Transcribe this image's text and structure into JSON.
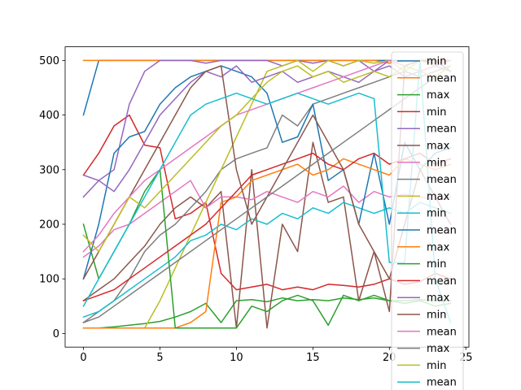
{
  "chart_data": {
    "type": "line",
    "title": "",
    "xlabel": "",
    "ylabel": "",
    "xlim": [
      -1.2,
      25.2
    ],
    "ylim": [
      -25,
      525
    ],
    "xticks": [
      0,
      5,
      10,
      15,
      20,
      25
    ],
    "yticks": [
      0,
      100,
      200,
      300,
      400,
      500
    ],
    "x": [
      0,
      1,
      2,
      3,
      4,
      5,
      6,
      7,
      8,
      9,
      10,
      11,
      12,
      13,
      14,
      15,
      16,
      17,
      18,
      19,
      20,
      21,
      22,
      23,
      24
    ],
    "legend_position": "right, partially clipped",
    "colors": [
      "#1f77b4",
      "#ff7f0e",
      "#2ca02c",
      "#d62728",
      "#9467bd",
      "#8c564b",
      "#e377c2",
      "#7f7f7f",
      "#bcbd22",
      "#17becf"
    ],
    "series": [
      {
        "name": "min",
        "values": [
          400,
          500,
          500,
          500,
          500,
          500,
          500,
          500,
          500,
          500,
          500,
          500,
          500,
          500,
          500,
          500,
          500,
          500,
          500,
          500,
          500,
          500,
          500,
          500,
          500
        ]
      },
      {
        "name": "mean",
        "values": [
          500,
          500,
          500,
          500,
          500,
          500,
          500,
          500,
          500,
          500,
          500,
          500,
          500,
          500,
          500,
          500,
          500,
          500,
          500,
          500,
          495,
          500,
          500,
          500,
          500
        ]
      },
      {
        "name": "max",
        "values": [
          10,
          10,
          12,
          15,
          18,
          22,
          30,
          40,
          55,
          20,
          60,
          62,
          58,
          65,
          60,
          62,
          60,
          65,
          62,
          65,
          60,
          60,
          62,
          60,
          60
        ]
      },
      {
        "name": "min",
        "values": [
          290,
          330,
          380,
          400,
          345,
          340,
          210,
          220,
          240,
          110,
          80,
          85,
          90,
          80,
          85,
          80,
          90,
          88,
          85,
          90,
          100,
          90,
          95,
          110,
          100
        ]
      },
      {
        "name": "mean",
        "values": [
          290,
          280,
          300,
          420,
          480,
          500,
          500,
          500,
          495,
          500,
          500,
          500,
          500,
          490,
          500,
          495,
          500,
          490,
          500,
          480,
          500,
          490,
          500,
          495,
          500
        ]
      },
      {
        "name": "max",
        "values": [
          60,
          80,
          100,
          130,
          160,
          200,
          230,
          250,
          230,
          260,
          10,
          300,
          10,
          200,
          150,
          350,
          240,
          250,
          60,
          150,
          40,
          490,
          500,
          500,
          480
        ]
      },
      {
        "name": "min",
        "values": [
          140,
          160,
          190,
          200,
          220,
          240,
          260,
          280,
          230,
          250,
          250,
          245,
          260,
          250,
          240,
          260,
          250,
          270,
          240,
          260,
          250,
          255,
          250,
          245,
          250
        ]
      },
      {
        "name": "mean",
        "values": [
          20,
          40,
          60,
          100,
          150,
          180,
          200,
          230,
          260,
          300,
          320,
          330,
          340,
          400,
          380,
          420,
          430,
          440,
          450,
          460,
          470,
          480,
          470,
          480,
          490
        ]
      },
      {
        "name": "max",
        "values": [
          10,
          10,
          10,
          10,
          10,
          60,
          120,
          180,
          240,
          300,
          360,
          420,
          480,
          490,
          500,
          480,
          500,
          490,
          500,
          495,
          500,
          480,
          500,
          490,
          500
        ]
      },
      {
        "name": "min",
        "values": [
          30,
          40,
          60,
          80,
          100,
          120,
          140,
          170,
          180,
          200,
          190,
          210,
          200,
          220,
          210,
          230,
          220,
          240,
          230,
          220,
          230,
          220,
          240,
          230,
          220
        ]
      },
      {
        "name": "mean",
        "values": [
          100,
          200,
          330,
          360,
          370,
          420,
          450,
          470,
          480,
          490,
          480,
          470,
          440,
          350,
          360,
          420,
          280,
          300,
          200,
          330,
          200,
          350,
          300,
          330,
          340
        ]
      },
      {
        "name": "max",
        "values": [
          10,
          10,
          10,
          10,
          10,
          10,
          10,
          20,
          40,
          240,
          250,
          280,
          290,
          300,
          310,
          290,
          300,
          320,
          310,
          300,
          290,
          320,
          310,
          300,
          310
        ]
      },
      {
        "name": "min",
        "values": [
          200,
          100,
          150,
          200,
          260,
          300,
          10,
          10,
          10,
          10,
          10,
          50,
          40,
          60,
          70,
          60,
          15,
          70,
          60,
          70,
          60,
          55,
          60,
          50,
          55
        ]
      },
      {
        "name": "mean",
        "values": [
          60,
          70,
          80,
          100,
          120,
          140,
          160,
          180,
          200,
          230,
          260,
          290,
          300,
          310,
          320,
          330,
          310,
          300,
          320,
          330,
          310,
          320,
          330,
          310,
          320
        ]
      },
      {
        "name": "max",
        "values": [
          250,
          280,
          260,
          300,
          350,
          400,
          430,
          460,
          480,
          470,
          490,
          460,
          470,
          480,
          460,
          470,
          480,
          470,
          460,
          480,
          490,
          470,
          480,
          490,
          480
        ]
      },
      {
        "name": "min",
        "values": [
          100,
          150,
          200,
          250,
          300,
          350,
          400,
          450,
          480,
          490,
          300,
          200,
          250,
          300,
          350,
          400,
          350,
          300,
          200,
          150,
          100,
          200,
          300,
          250,
          200
        ]
      },
      {
        "name": "mean",
        "values": [
          150,
          180,
          220,
          250,
          280,
          300,
          320,
          340,
          360,
          380,
          400,
          410,
          420,
          430,
          440,
          450,
          460,
          470,
          480,
          490,
          500,
          490,
          480,
          490,
          500
        ]
      },
      {
        "name": "max",
        "values": [
          20,
          30,
          50,
          70,
          90,
          110,
          130,
          150,
          170,
          190,
          210,
          230,
          250,
          270,
          290,
          310,
          330,
          350,
          370,
          390,
          410,
          430,
          450,
          470,
          490
        ]
      },
      {
        "name": "min",
        "values": [
          180,
          150,
          200,
          250,
          230,
          260,
          290,
          320,
          350,
          380,
          400,
          430,
          460,
          480,
          490,
          470,
          480,
          460,
          470,
          480,
          470,
          490,
          480,
          470,
          490
        ]
      },
      {
        "name": "mean",
        "values": [
          50,
          100,
          150,
          200,
          250,
          300,
          350,
          400,
          420,
          430,
          440,
          430,
          420,
          430,
          440,
          430,
          420,
          430,
          440,
          430,
          130,
          130,
          500,
          100,
          20
        ]
      }
    ]
  },
  "legend": {
    "entries": [
      "min",
      "mean",
      "max",
      "min",
      "mean",
      "max",
      "min",
      "mean",
      "max",
      "min",
      "mean",
      "max",
      "min",
      "mean",
      "max",
      "min",
      "mean",
      "max",
      "min",
      "mean"
    ]
  }
}
